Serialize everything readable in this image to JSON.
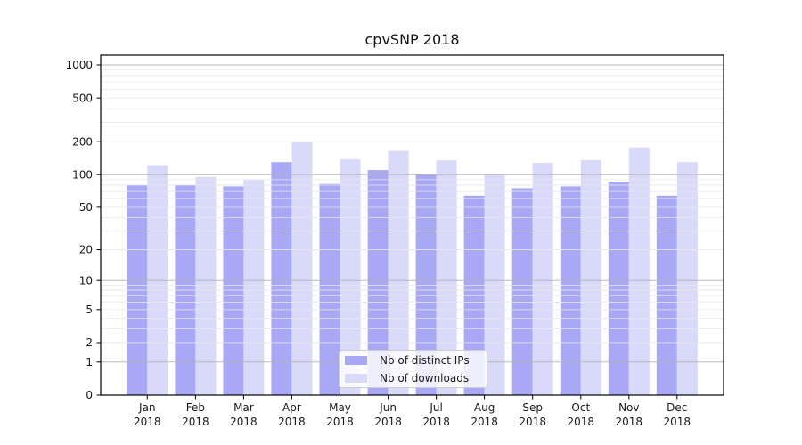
{
  "chart_data": {
    "type": "bar",
    "title": "cpvSNP 2018",
    "x_categories": [
      "Jan",
      "Feb",
      "Mar",
      "Apr",
      "May",
      "Jun",
      "Jul",
      "Aug",
      "Sep",
      "Oct",
      "Nov",
      "Dec"
    ],
    "x_year_label": "2018",
    "series": [
      {
        "name": "Nb of distinct IPs",
        "color": "#a8a8f4",
        "values": [
          80,
          80,
          78,
          130,
          82,
          110,
          100,
          64,
          75,
          78,
          86,
          64
        ]
      },
      {
        "name": "Nb of downloads",
        "color": "#d9d9fa",
        "values": [
          122,
          95,
          89,
          197,
          138,
          165,
          135,
          100,
          128,
          136,
          177,
          130
        ]
      }
    ],
    "yscale": "log1p",
    "ylim": [
      0,
      1000
    ],
    "yticks": [
      0,
      1,
      2,
      5,
      10,
      20,
      50,
      100,
      200,
      500,
      1000
    ],
    "major_gridlines": [
      1,
      10,
      100,
      1000
    ],
    "minor_gridlines": [
      2,
      3,
      4,
      5,
      6,
      7,
      8,
      9,
      20,
      30,
      40,
      50,
      60,
      70,
      80,
      90,
      200,
      300,
      400,
      500,
      600,
      700,
      800,
      900
    ],
    "grid": true,
    "legend_position": "lower-center-inside"
  },
  "colors": {
    "background": "#ffffff",
    "bar_distinct_ips": "#a8a8f4",
    "bar_downloads": "#d9d9fa",
    "grid_major": "#b3b3b3",
    "grid_minor": "#e6e6e6",
    "axis": "#000000",
    "text": "#1a1a1a",
    "legend_border": "#cccccc"
  }
}
